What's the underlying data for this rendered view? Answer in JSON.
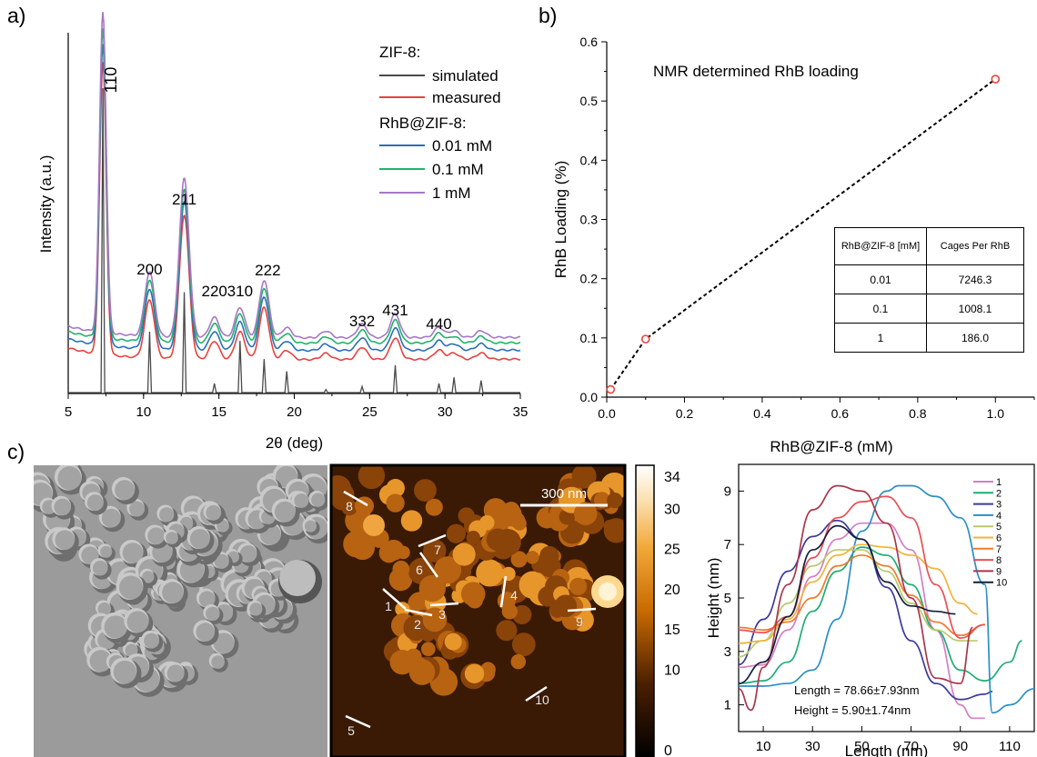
{
  "panels": {
    "a": "a)",
    "b": "b)",
    "c": "c)"
  },
  "chart_data": [
    {
      "panel": "a",
      "type": "line",
      "xlabel": "2θ (deg)",
      "ylabel": "Intensity (a.u.)",
      "xlim": [
        5,
        35
      ],
      "xticks": [
        5,
        10,
        15,
        20,
        25,
        30,
        35
      ],
      "legend": {
        "position": "top-right",
        "group1_title": "ZIF-8:",
        "group2_title": "RhB@ZIF-8:",
        "entries": [
          "simulated",
          "measured",
          "0.01 mM",
          "0.1 mM",
          "1 mM"
        ]
      },
      "series": [
        {
          "name": "simulated",
          "color": "#4a4a4a"
        },
        {
          "name": "measured",
          "color": "#e8423c"
        },
        {
          "name": "0.01 mM",
          "color": "#2a6fb7"
        },
        {
          "name": "0.1 mM",
          "color": "#1fb36b"
        },
        {
          "name": "1 mM",
          "color": "#a877c6"
        }
      ],
      "peaks": [
        {
          "two_theta": 7.3,
          "label": "110",
          "sim": 1.0,
          "meas": 0.95
        },
        {
          "two_theta": 10.4,
          "label": "200",
          "sim": 0.2,
          "meas": 0.19
        },
        {
          "two_theta": 12.7,
          "label": "211",
          "sim": 0.33,
          "meas": 0.47
        },
        {
          "two_theta": 14.7,
          "label": "220",
          "sim": 0.03,
          "meas": 0.06
        },
        {
          "two_theta": 16.4,
          "label": "310",
          "sim": 0.17,
          "meas": 0.09
        },
        {
          "two_theta": 18.0,
          "label": "222",
          "sim": 0.11,
          "meas": 0.17
        },
        {
          "two_theta": 19.5,
          "label": "",
          "sim": 0.07,
          "meas": 0.03
        },
        {
          "two_theta": 22.1,
          "label": "",
          "sim": 0.01,
          "meas": 0.02
        },
        {
          "two_theta": 24.5,
          "label": "332",
          "sim": 0.02,
          "meas": 0.04
        },
        {
          "two_theta": 26.7,
          "label": "431",
          "sim": 0.09,
          "meas": 0.07
        },
        {
          "two_theta": 29.6,
          "label": "440",
          "sim": 0.03,
          "meas": 0.03
        },
        {
          "two_theta": 30.6,
          "label": "",
          "sim": 0.05,
          "meas": 0.02
        },
        {
          "two_theta": 32.4,
          "label": "",
          "sim": 0.04,
          "meas": 0.02
        }
      ]
    },
    {
      "panel": "b",
      "type": "scatter",
      "annotation": "NMR determined RhB loading",
      "xlabel": "RhB@ZIF-8 (mM)",
      "ylabel": "RhB Loading (%)",
      "xlim": [
        0,
        1.1
      ],
      "ylim": [
        0,
        0.6
      ],
      "xticks": [
        "0.0",
        "0.2",
        "0.4",
        "0.6",
        "0.8",
        "1.0"
      ],
      "yticks": [
        "0.0",
        "0.1",
        "0.2",
        "0.3",
        "0.4",
        "0.5",
        "0.6"
      ],
      "x": [
        0.01,
        0.1,
        1.0
      ],
      "y": [
        0.013,
        0.098,
        0.537
      ],
      "marker_color": "#e8423c",
      "line_style": "dashed",
      "table": {
        "header": [
          "RhB@ZIF-8 [mM]",
          "Cages Per RhB"
        ],
        "rows": [
          [
            "0.01",
            "7246.3"
          ],
          [
            "0.1",
            "1008.1"
          ],
          [
            "1",
            "186.0"
          ]
        ]
      }
    },
    {
      "panel": "c",
      "type": "line",
      "xlabel": "Length (nm)",
      "ylabel": "Height (nm)",
      "xlim": [
        0,
        120
      ],
      "ylim": [
        0,
        10
      ],
      "xticks": [
        10,
        30,
        50,
        70,
        90,
        110
      ],
      "yticks": [
        1,
        3,
        5,
        7,
        9
      ],
      "stats": {
        "length": "Length = 78.66±7.93nm",
        "height": "Height = 5.90±1.74nm"
      },
      "series": [
        {
          "name": "1",
          "color": "#d47fc4",
          "x": [
            0,
            10,
            20,
            30,
            40,
            50,
            60,
            70,
            80,
            90,
            95,
            100
          ],
          "y": [
            2.4,
            2.5,
            3.8,
            5.8,
            7.2,
            7.8,
            7.8,
            6.8,
            3.8,
            1.0,
            0.5,
            0.5
          ]
        },
        {
          "name": "2",
          "color": "#1fae74",
          "x": [
            0,
            10,
            20,
            30,
            40,
            50,
            60,
            70,
            80,
            90,
            100,
            110,
            115
          ],
          "y": [
            1.8,
            1.9,
            2.6,
            4.5,
            6.0,
            6.9,
            6.6,
            5.5,
            3.8,
            2.3,
            1.9,
            2.6,
            3.4
          ]
        },
        {
          "name": "3",
          "color": "#3d3a9c",
          "x": [
            0,
            10,
            20,
            30,
            40,
            50,
            60,
            70,
            80,
            90,
            100,
            103
          ],
          "y": [
            2.5,
            4.2,
            6.0,
            7.3,
            7.9,
            7.2,
            5.4,
            3.4,
            1.8,
            1.2,
            1.4,
            1.5
          ]
        },
        {
          "name": "4",
          "color": "#2b8fc6",
          "x": [
            0,
            10,
            20,
            30,
            40,
            50,
            60,
            65,
            70,
            80,
            90,
            100,
            103,
            110,
            120
          ],
          "y": [
            1.7,
            1.7,
            1.8,
            2.3,
            4.2,
            7.5,
            9.0,
            9.2,
            9.2,
            8.8,
            8.0,
            5.5,
            0.7,
            1.0,
            1.6
          ]
        },
        {
          "name": "5",
          "color": "#b9c96e",
          "x": [
            0,
            10,
            20,
            30,
            40,
            50,
            60,
            70,
            80,
            90,
            97
          ],
          "y": [
            2.8,
            3.4,
            4.8,
            6.2,
            6.8,
            6.8,
            6.0,
            4.8,
            3.8,
            3.4,
            3.4
          ]
        },
        {
          "name": "6",
          "color": "#f0b43c",
          "x": [
            0,
            10,
            20,
            30,
            40,
            50,
            60,
            70,
            80,
            90,
            97
          ],
          "y": [
            3.3,
            3.4,
            4.2,
            5.6,
            6.6,
            7.0,
            6.9,
            6.6,
            6.1,
            4.8,
            4.4
          ]
        },
        {
          "name": "7",
          "color": "#f07a2c",
          "x": [
            0,
            10,
            20,
            30,
            40,
            50,
            60,
            70,
            80,
            90,
            100
          ],
          "y": [
            3.9,
            3.8,
            4.1,
            5.0,
            6.2,
            6.6,
            6.2,
            5.1,
            4.1,
            3.6,
            4.0
          ]
        },
        {
          "name": "8",
          "color": "#ea4f55",
          "x": [
            0,
            10,
            20,
            30,
            40,
            50,
            60,
            70,
            80,
            90,
            100
          ],
          "y": [
            3.8,
            3.7,
            4.3,
            6.5,
            8.0,
            8.6,
            8.8,
            8.0,
            5.5,
            3.5,
            4.0
          ]
        },
        {
          "name": "9",
          "color": "#a8364a",
          "x": [
            0,
            5,
            10,
            20,
            30,
            40,
            50,
            60,
            70,
            80,
            90,
            95
          ],
          "y": [
            1.6,
            0.8,
            2.4,
            5.5,
            8.3,
            9.2,
            9.0,
            7.8,
            5.0,
            2.0,
            1.8,
            3.9
          ]
        },
        {
          "name": "10",
          "color": "#14203c",
          "x": [
            0,
            10,
            20,
            30,
            40,
            50,
            60,
            70,
            80,
            88
          ],
          "y": [
            1.8,
            2.6,
            4.3,
            6.8,
            7.7,
            7.2,
            5.6,
            4.7,
            4.5,
            4.4
          ]
        }
      ]
    }
  ],
  "afm": {
    "colorbar_ticks": [
      "34",
      "30",
      "25",
      "20",
      "15",
      "10",
      "0"
    ],
    "colorbar_tick_values": [
      34,
      30,
      25,
      20,
      15,
      10,
      0
    ],
    "scale_bar": "300 nm",
    "line_labels": [
      "1",
      "2",
      "3",
      "4",
      "5",
      "6",
      "7",
      "8",
      "9",
      "10"
    ]
  }
}
